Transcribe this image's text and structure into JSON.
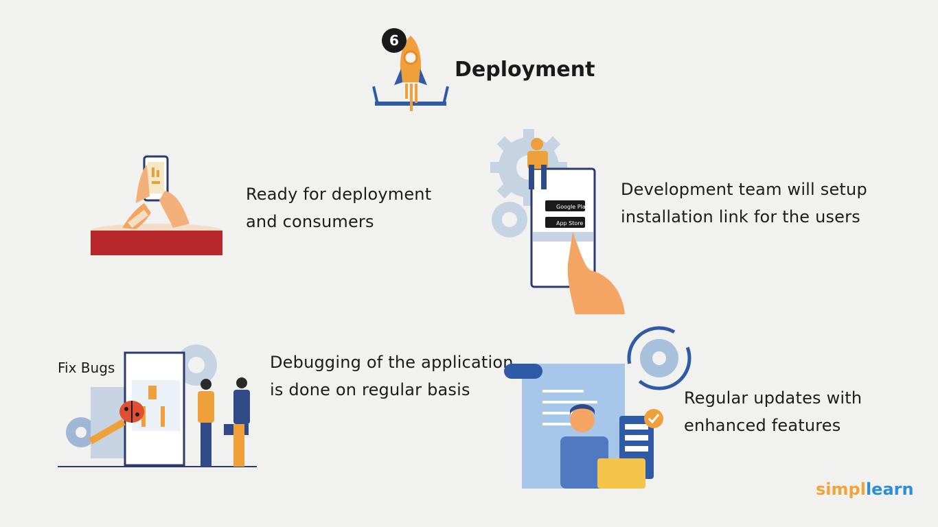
{
  "header": {
    "step_number": "6",
    "title": "Deployment"
  },
  "items": [
    {
      "lines": [
        "Ready for deployment",
        "and consumers"
      ]
    },
    {
      "lines": [
        "Development team will setup",
        "installation link for the users"
      ]
    },
    {
      "lines": [
        "Debugging of the application",
        "is done on regular basis"
      ],
      "illustration_label": "Fix Bugs"
    },
    {
      "lines": [
        "Regular updates with",
        "enhanced features"
      ]
    }
  ],
  "store_badges": {
    "google": "Google Play",
    "apple": "App Store"
  },
  "brand": {
    "part1": "simpl",
    "part2": "learn",
    "color1": "#f2a33a",
    "color2": "#2c8fd6"
  },
  "icons": [
    "rocket-icon",
    "phone-hand-icon",
    "gear-icon",
    "app-store-phone-icon",
    "bug-icon",
    "wrench-icon",
    "code-scroll-icon",
    "laptop-icon",
    "checkmark-icon",
    "refresh-gear-icon"
  ]
}
